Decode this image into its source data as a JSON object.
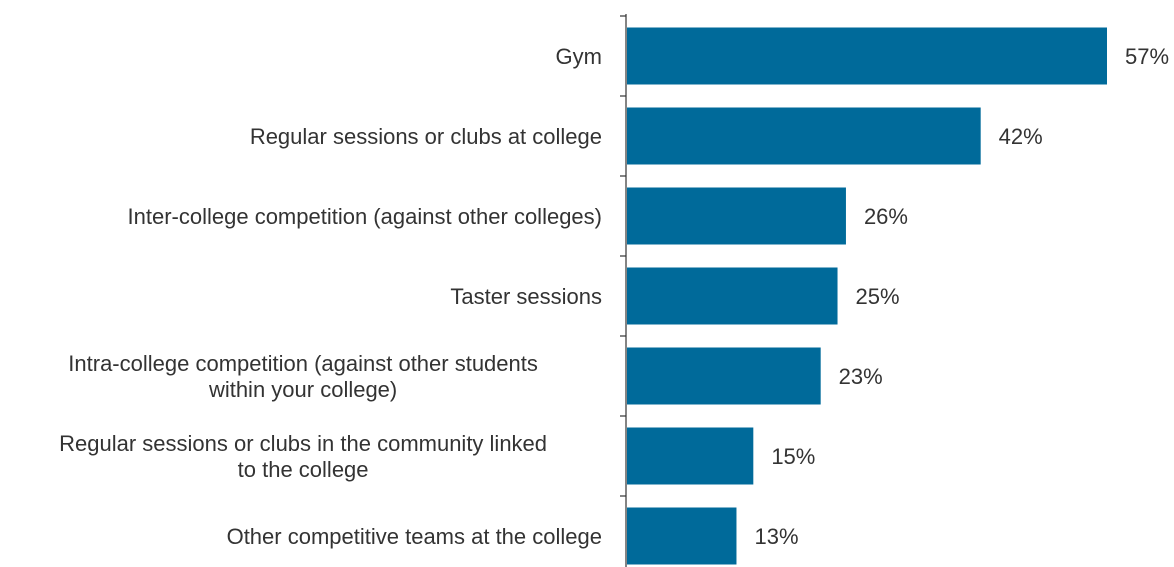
{
  "chart_data": {
    "type": "bar",
    "orientation": "horizontal",
    "categories": [
      [
        "Gym"
      ],
      [
        "Regular sessions or clubs at college"
      ],
      [
        "Inter-college competition (against other colleges)"
      ],
      [
        "Taster sessions"
      ],
      [
        "Intra-college competition (against other students",
        "within your college)"
      ],
      [
        "Regular sessions or clubs in the community linked",
        "to the college"
      ],
      [
        "Other competitive teams at the college"
      ]
    ],
    "values": [
      57,
      42,
      26,
      25,
      23,
      15,
      13
    ],
    "value_labels": [
      "57%",
      "42%",
      "26%",
      "25%",
      "23%",
      "15%",
      "13%"
    ],
    "unit": "%",
    "xlim": [
      0,
      57
    ],
    "grid": false,
    "legend": "none",
    "bar_color": "#006a9a",
    "text_color": "#333333"
  }
}
